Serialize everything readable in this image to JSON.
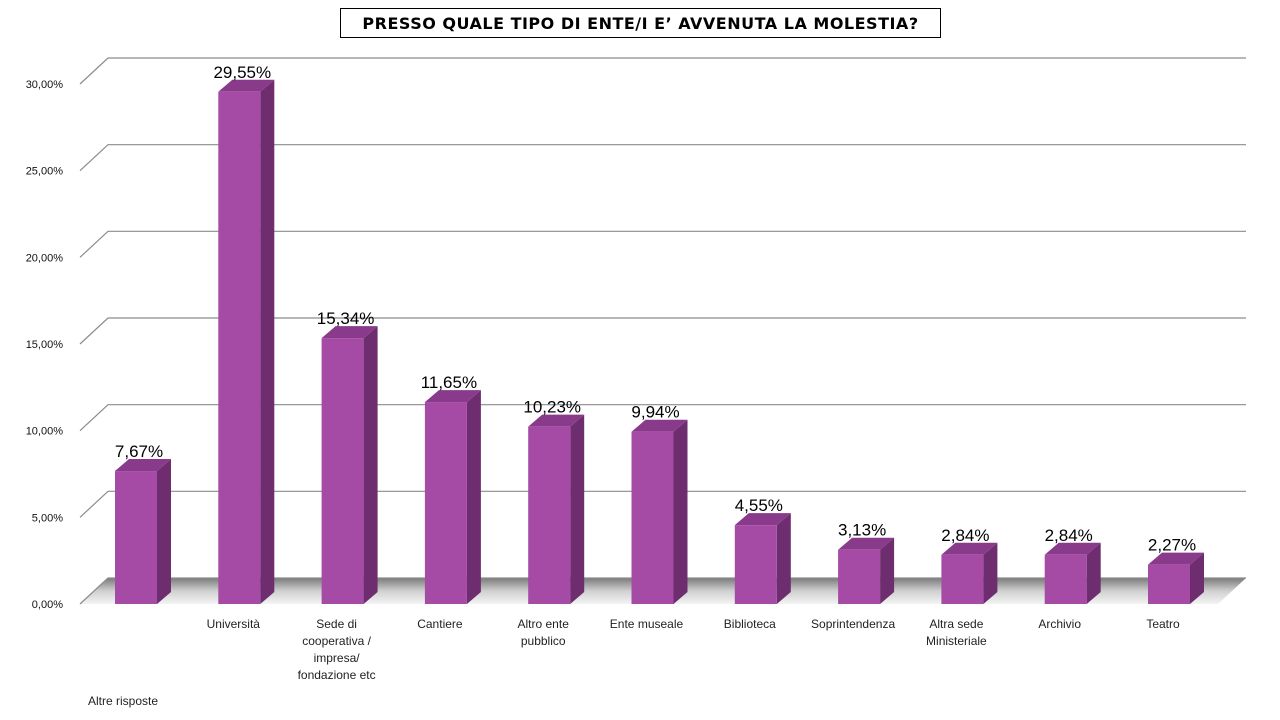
{
  "chart_data": {
    "type": "bar",
    "title": "PRESSO QUALE TIPO DI ENTE/I E’ AVVENUTA LA MOLESTIA?",
    "categories": [
      "Altre risposte",
      "Università",
      "Sede di cooperativa / impresa/ fondazione etc",
      "Cantiere",
      "Altro ente pubblico",
      "Ente museale",
      "Biblioteca",
      "Soprintendenza",
      "Altra sede Ministeriale",
      "Archivio",
      "Teatro"
    ],
    "category_lines": [
      [
        "Altre risposte"
      ],
      [
        "Università"
      ],
      [
        "Sede di",
        "cooperativa /",
        "impresa/",
        "fondazione etc"
      ],
      [
        "Cantiere"
      ],
      [
        "Altro ente",
        "pubblico"
      ],
      [
        "Ente museale"
      ],
      [
        "Biblioteca"
      ],
      [
        "Soprintendenza"
      ],
      [
        "Altra sede",
        "Ministeriale"
      ],
      [
        "Archivio"
      ],
      [
        "Teatro"
      ]
    ],
    "values": [
      7.67,
      29.55,
      15.34,
      11.65,
      10.23,
      9.94,
      4.55,
      3.13,
      2.84,
      2.84,
      2.27
    ],
    "data_labels": [
      "7,67%",
      "29,55%",
      "15,34%",
      "11,65%",
      "10,23%",
      "9,94%",
      "4,55%",
      "3,13%",
      "2,84%",
      "2,84%",
      "2,27%"
    ],
    "yticks": [
      0,
      5,
      10,
      15,
      20,
      25,
      30
    ],
    "ytick_labels": [
      "0,00%",
      "5,00%",
      "10,00%",
      "15,00%",
      "20,00%",
      "25,00%",
      "30,00%"
    ],
    "ylim": [
      0,
      30
    ],
    "xlabel": "",
    "ylabel": "",
    "grid": true,
    "legend": "none",
    "bar_colors": {
      "front": "#a54ba5",
      "side": "#6e2d6e",
      "top": "#8a3a8a"
    }
  }
}
